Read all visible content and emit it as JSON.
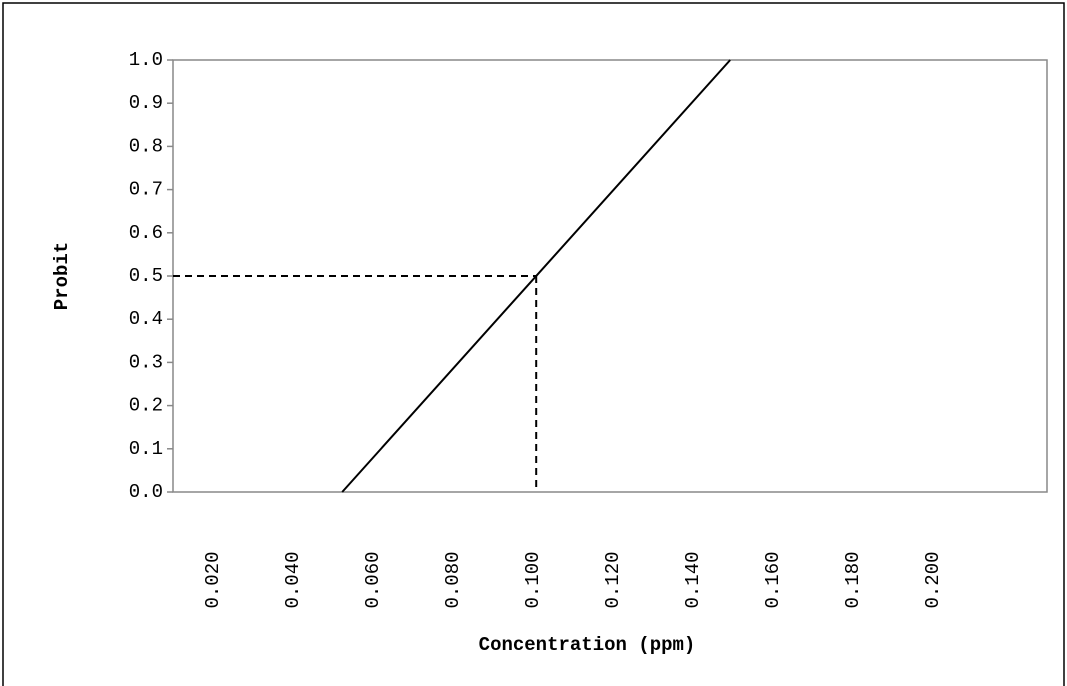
{
  "chart_data": {
    "type": "line",
    "xlabel": "Concentration (ppm)",
    "ylabel": "Probit",
    "xlim": [
      0.01,
      0.2285
    ],
    "ylim": [
      0,
      1
    ],
    "xticks": [
      {
        "value": 0.02,
        "label": "0.020"
      },
      {
        "value": 0.04,
        "label": "0.040"
      },
      {
        "value": 0.06,
        "label": "0.060"
      },
      {
        "value": 0.08,
        "label": "0.080"
      },
      {
        "value": 0.1,
        "label": "0.100"
      },
      {
        "value": 0.12,
        "label": "0.120"
      },
      {
        "value": 0.14,
        "label": "0.140"
      },
      {
        "value": 0.16,
        "label": "0.160"
      },
      {
        "value": 0.18,
        "label": "0.180"
      },
      {
        "value": 0.2,
        "label": "0.200"
      }
    ],
    "yticks": [
      {
        "value": 0,
        "label": "0.0"
      },
      0.1,
      0.2,
      0.3,
      0.4,
      0.5,
      0.6,
      0.7,
      0.8,
      0.9,
      {
        "value": 1,
        "label": "1.0"
      }
    ],
    "series": [
      {
        "color": "#000000",
        "x": [
          0.0523,
          0.1493
        ],
        "values": [
          0,
          1
        ]
      }
    ],
    "reference": {
      "x": 0.1008,
      "y": 0.5
    }
  }
}
